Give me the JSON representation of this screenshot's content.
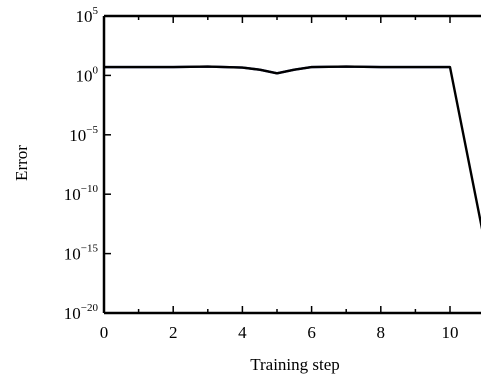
{
  "chart_data": {
    "type": "line",
    "title": "",
    "xlabel": "Training step",
    "ylabel": "Error",
    "yscale": "log",
    "xlim": [
      0,
      11
    ],
    "ylim_exponent": [
      -20,
      5
    ],
    "xticks": [
      {
        "value": 0,
        "label": "0"
      },
      {
        "value": 2,
        "label": "2"
      },
      {
        "value": 4,
        "label": "4"
      },
      {
        "value": 6,
        "label": "6"
      },
      {
        "value": 8,
        "label": "8"
      },
      {
        "value": 10,
        "label": "10"
      }
    ],
    "yticks": [
      {
        "exponent": 5,
        "base": "10",
        "exp": "5"
      },
      {
        "exponent": 0,
        "base": "10",
        "exp": "0"
      },
      {
        "exponent": -5,
        "base": "10",
        "exp": "−5"
      },
      {
        "exponent": -10,
        "base": "10",
        "exp": "−10"
      },
      {
        "exponent": -15,
        "base": "10",
        "exp": "−15"
      },
      {
        "exponent": -20,
        "base": "10",
        "exp": "−20"
      }
    ],
    "grid": false,
    "series": [
      {
        "color": "#000000",
        "x": [
          0,
          1,
          2,
          3,
          4,
          4.5,
          5,
          5.5,
          6,
          7,
          8,
          9,
          10,
          11
        ],
        "y": [
          5,
          5,
          5,
          5.5,
          4.5,
          3,
          1.5,
          3,
          5,
          5.5,
          5,
          5,
          5,
          1e-14
        ]
      },
      {
        "color": "#2b3a99",
        "x": [
          0,
          1,
          2,
          3,
          4,
          4.5,
          5,
          5.5,
          6,
          7,
          8,
          9,
          10
        ],
        "y": [
          5,
          5,
          5,
          5.5,
          4.5,
          3,
          1.5,
          3,
          5,
          5.5,
          5,
          5,
          5
        ]
      }
    ]
  }
}
